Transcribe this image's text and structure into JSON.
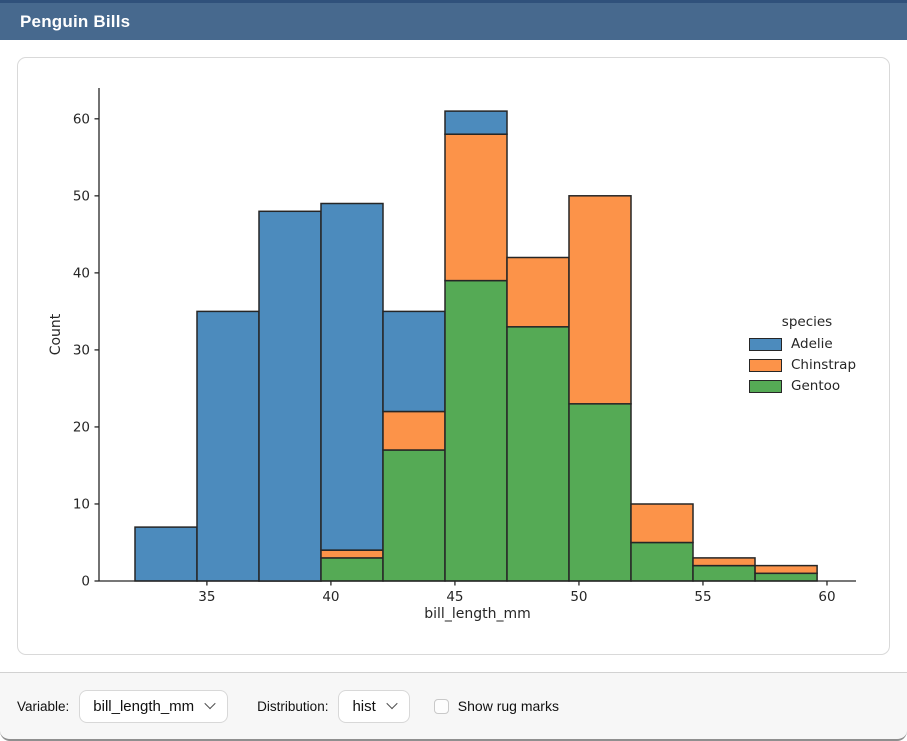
{
  "window": {
    "title": "Penguin Bills"
  },
  "theme": {
    "titlebar_bg": "#47698e",
    "titlebar_edge": "#30517b",
    "card_border": "#d9d9d9",
    "bar_edge": "#262626",
    "axis_color": "#262626"
  },
  "chart_data": {
    "type": "bar",
    "subtype": "stacked-histogram",
    "title": "",
    "xlabel": "bill_length_mm",
    "ylabel": "Count",
    "bin_edges": [
      32.1,
      34.6,
      37.1,
      39.6,
      42.1,
      44.6,
      47.1,
      49.6,
      52.1,
      54.6,
      57.1,
      59.6
    ],
    "series": [
      {
        "name": "Adelie",
        "color": "#4c8bbd",
        "values": [
          7,
          35,
          48,
          45,
          13,
          3,
          0,
          0,
          0,
          0,
          0
        ]
      },
      {
        "name": "Chinstrap",
        "color": "#fc9349",
        "values": [
          0,
          0,
          0,
          1,
          5,
          19,
          9,
          27,
          5,
          1,
          1
        ]
      },
      {
        "name": "Gentoo",
        "color": "#55aa55",
        "values": [
          0,
          0,
          0,
          3,
          17,
          39,
          33,
          23,
          5,
          2,
          1
        ]
      }
    ],
    "stack_order_bottom_to_top": [
      "Gentoo",
      "Chinstrap",
      "Adelie"
    ],
    "bin_totals": [
      7,
      35,
      48,
      49,
      35,
      61,
      42,
      50,
      10,
      3,
      2
    ],
    "xticks": [
      35,
      40,
      45,
      50,
      55,
      60
    ],
    "yticks": [
      0,
      10,
      20,
      30,
      40,
      50,
      60
    ],
    "xlim": [
      30.65,
      61.17
    ],
    "ylim": [
      0,
      64
    ],
    "grid": false,
    "legend": {
      "title": "species",
      "entries": [
        "Adelie",
        "Chinstrap",
        "Gentoo"
      ],
      "position": "center-right"
    }
  },
  "controls": {
    "variable_label": "Variable:",
    "variable_value": "bill_length_mm",
    "distribution_label": "Distribution:",
    "distribution_value": "hist",
    "rug_label": "Show rug marks",
    "rug_checked": false
  }
}
